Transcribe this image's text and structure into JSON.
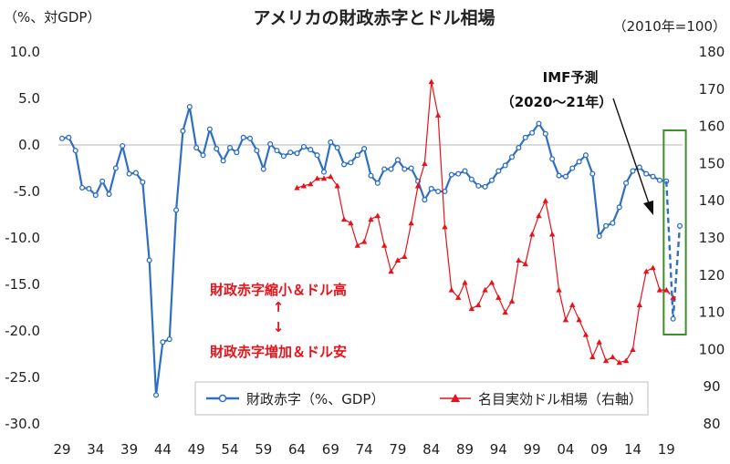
{
  "chart_data": {
    "type": "line",
    "title": "アメリカの財政赤字とドル相場",
    "left_unit": "（%、対GDP）",
    "right_unit": "（2010年=100）",
    "x_tick_labels": [
      "29",
      "34",
      "39",
      "44",
      "49",
      "54",
      "59",
      "64",
      "69",
      "74",
      "79",
      "84",
      "89",
      "94",
      "99",
      "04",
      "09",
      "14",
      "19"
    ],
    "left_ticks": [
      "10.0",
      "5.0",
      "0.0",
      "-5.0",
      "-10.0",
      "-15.0",
      "-20.0",
      "-25.0",
      "-30.0"
    ],
    "right_ticks": [
      "180",
      "170",
      "160",
      "150",
      "140",
      "130",
      "120",
      "110",
      "100",
      "90",
      "80"
    ],
    "ylim_left": [
      -30,
      10
    ],
    "ylim_right": [
      80,
      180
    ],
    "series": [
      {
        "name": "財政赤字（%、GDP）",
        "axis": "left",
        "color": "#2e6fc4",
        "marker": "circle",
        "x": [
          1929,
          1930,
          1931,
          1932,
          1933,
          1934,
          1935,
          1936,
          1937,
          1938,
          1939,
          1940,
          1941,
          1942,
          1943,
          1944,
          1945,
          1946,
          1947,
          1948,
          1949,
          1950,
          1951,
          1952,
          1953,
          1954,
          1955,
          1956,
          1957,
          1958,
          1959,
          1960,
          1961,
          1962,
          1963,
          1964,
          1965,
          1966,
          1967,
          1968,
          1969,
          1970,
          1971,
          1972,
          1973,
          1974,
          1975,
          1976,
          1977,
          1978,
          1979,
          1980,
          1981,
          1982,
          1983,
          1984,
          1985,
          1986,
          1987,
          1988,
          1989,
          1990,
          1991,
          1992,
          1993,
          1994,
          1995,
          1996,
          1997,
          1998,
          1999,
          2000,
          2001,
          2002,
          2003,
          2004,
          2005,
          2006,
          2007,
          2008,
          2009,
          2010,
          2011,
          2012,
          2013,
          2014,
          2015,
          2016,
          2017,
          2018,
          2019
        ],
        "values": [
          0.7,
          0.8,
          -0.6,
          -4.6,
          -4.7,
          -5.4,
          -3.9,
          -5.3,
          -2.5,
          -0.1,
          -3.1,
          -3.0,
          -4.0,
          -12.4,
          -26.9,
          -21.2,
          -20.9,
          -7.0,
          1.5,
          4.1,
          -0.3,
          -1.1,
          1.7,
          -0.4,
          -1.7,
          -0.3,
          -0.8,
          0.8,
          0.7,
          -0.6,
          -2.6,
          0.1,
          -0.6,
          -1.2,
          -0.8,
          -0.9,
          -0.2,
          -0.5,
          -1.1,
          -2.9,
          0.3,
          -0.3,
          -2.1,
          -1.9,
          -1.1,
          -0.4,
          -3.3,
          -4.1,
          -2.6,
          -2.6,
          -1.6,
          -2.6,
          -2.5,
          -3.9,
          -5.9,
          -4.7,
          -5.0,
          -5.0,
          -3.2,
          -3.1,
          -2.8,
          -3.7,
          -4.4,
          -4.5,
          -3.8,
          -2.8,
          -2.2,
          -1.3,
          -0.3,
          0.8,
          1.3,
          2.3,
          1.2,
          -1.5,
          -3.3,
          -3.4,
          -2.5,
          -1.8,
          -1.1,
          -3.1,
          -9.8,
          -8.7,
          -8.4,
          -6.7,
          -4.1,
          -2.8,
          -2.4,
          -3.1,
          -3.4,
          -3.8,
          -3.9
        ]
      },
      {
        "name": "IMF予測（財政赤字）",
        "axis": "left",
        "color": "#2e6fc4",
        "marker": "circle",
        "dashed": true,
        "x": [
          2019,
          2020,
          2021
        ],
        "values": [
          -3.9,
          -18.7,
          -8.7
        ]
      },
      {
        "name": "名目実効ドル相場（右軸）",
        "axis": "right",
        "color": "#e8121a",
        "marker": "triangle",
        "x": [
          1964,
          1965,
          1966,
          1967,
          1968,
          1969,
          1970,
          1971,
          1972,
          1973,
          1974,
          1975,
          1976,
          1977,
          1978,
          1979,
          1980,
          1981,
          1982,
          1983,
          1984,
          1985,
          1986,
          1987,
          1988,
          1989,
          1990,
          1991,
          1992,
          1993,
          1994,
          1995,
          1996,
          1997,
          1998,
          1999,
          2000,
          2001,
          2002,
          2003,
          2004,
          2005,
          2006,
          2007,
          2008,
          2009,
          2010,
          2011,
          2012,
          2013,
          2014,
          2015,
          2016,
          2017,
          2018,
          2019
        ],
        "values": [
          143.5,
          144.0,
          144.5,
          146.0,
          146.0,
          146.5,
          144.0,
          135.0,
          134.0,
          128.0,
          129.0,
          135.0,
          136.0,
          128.0,
          121.0,
          124.0,
          125.0,
          134.0,
          144.0,
          150.0,
          172.0,
          163.0,
          133.0,
          116.0,
          114.0,
          118.0,
          111.0,
          112.0,
          116.0,
          118.0,
          114.0,
          110.0,
          113.0,
          124.0,
          123.0,
          131.0,
          136.0,
          140.0,
          131.0,
          116.0,
          108.0,
          112.0,
          108.0,
          104.0,
          98.0,
          102.0,
          97.0,
          98.0,
          96.5,
          97.0,
          100.0,
          112.0,
          121.0,
          122.0,
          116.0,
          116.0
        ]
      },
      {
        "name": "IMF予測（ドル相場）",
        "axis": "right",
        "color": "#e8121a",
        "marker": "triangle",
        "dashed": true,
        "x": [
          2019,
          2020
        ],
        "values": [
          116.0,
          114.0
        ]
      }
    ],
    "legend": {
      "placement": "bottom-center",
      "items": [
        "財政赤字（%、GDP）",
        "名目実効ドル相場（右軸）"
      ]
    },
    "annotations": {
      "imf_line1": "IMF予測",
      "imf_line2": "（2020～21年）",
      "red_line1": "財政赤字縮小＆ドル高",
      "red_arrow_up": "↑",
      "red_arrow_down": "↓",
      "red_line2": "財政赤字増加＆ドル安"
    },
    "colors": {
      "deficit": "#2e6fc4",
      "dollar": "#e8121a",
      "forecast_box": "#3e8e2c"
    },
    "grid": false
  }
}
